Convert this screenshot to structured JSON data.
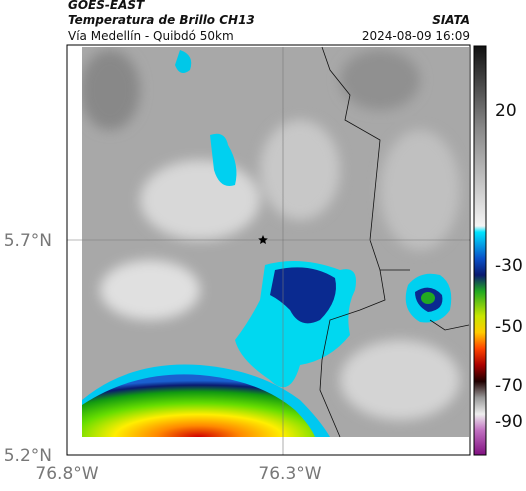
{
  "header": {
    "satellite": "GOES-EAST",
    "product": "Temperatura de Brillo CH13",
    "source": "SIATA",
    "route": "Vía Medellín - Quibdó 50km",
    "timestamp": "2024-08-09 16:09"
  },
  "axes": {
    "lat_labels": [
      "5.7°N",
      "5.2°N"
    ],
    "lon_labels": [
      "76.8°W",
      "76.3°W"
    ]
  },
  "colorbar": {
    "tick_labels": [
      "20",
      "-30",
      "-50",
      "-70",
      "-90"
    ]
  }
}
